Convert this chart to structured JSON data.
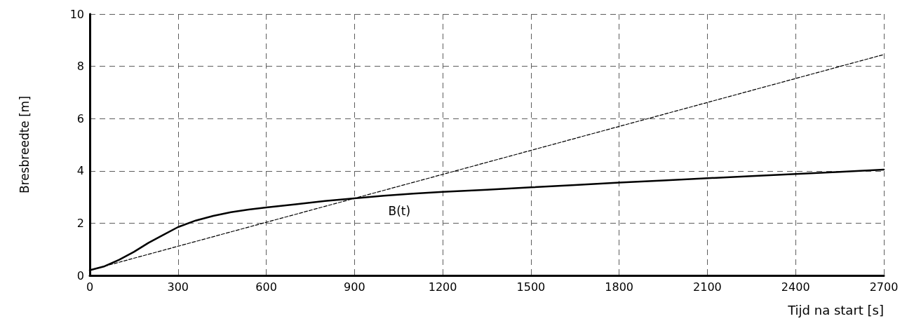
{
  "chart_data": {
    "type": "line",
    "xlabel": "Tijd na start [s]",
    "ylabel": "Bresbreedte [m]",
    "xlim": [
      0,
      2700
    ],
    "xticks": [
      0,
      300,
      600,
      900,
      1200,
      1500,
      1800,
      2100,
      2400,
      2700
    ],
    "ylim": [
      0,
      10
    ],
    "yticks": [
      0,
      2,
      4,
      6,
      8,
      10
    ],
    "grid": true,
    "marker": "none",
    "series": [
      {
        "name": "B(t)",
        "color": "#000000",
        "line_style": "solid",
        "x": [
          0,
          50,
          100,
          150,
          200,
          250,
          300,
          360,
          420,
          480,
          540,
          600,
          700,
          800,
          900,
          1000,
          1100,
          1200,
          1350,
          1500,
          1650,
          1800,
          1950,
          2100,
          2250,
          2400,
          2550,
          2700
        ],
        "values": [
          0.2,
          0.35,
          0.6,
          0.9,
          1.25,
          1.55,
          1.85,
          2.1,
          2.28,
          2.42,
          2.52,
          2.6,
          2.72,
          2.85,
          2.95,
          3.05,
          3.13,
          3.2,
          3.28,
          3.37,
          3.46,
          3.55,
          3.63,
          3.72,
          3.8,
          3.88,
          3.96,
          4.05
        ]
      },
      {
        "color": "#000000",
        "line_style": "dashed",
        "x": [
          0,
          2700
        ],
        "values": [
          0.2,
          8.45
        ]
      }
    ]
  }
}
